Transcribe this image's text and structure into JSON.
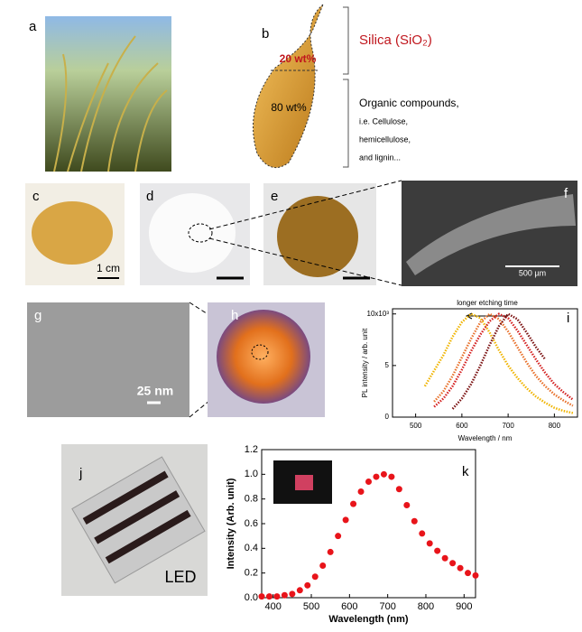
{
  "panel_labels": [
    "a",
    "b",
    "c",
    "d",
    "e",
    "f",
    "g",
    "h",
    "i",
    "j",
    "k"
  ],
  "husk": {
    "silica": "Silica (SiO₂)",
    "outer": "20 wt%",
    "inner": "80 wt%",
    "organic": [
      "Organic compounds,",
      "i.e. Cellulose,",
      "hemicellulose,",
      "and lignin..."
    ]
  },
  "scale_bars": {
    "c": "1 cm",
    "f": "500 µm",
    "g": "25 nm"
  },
  "led": "LED",
  "chart_data": [
    {
      "type": "line",
      "annotation": "longer etching time",
      "xlabel": "Wavelength / nm",
      "ylabel": "PL intensity / arb. unit",
      "x": [
        520,
        540,
        560,
        580,
        600,
        620,
        640,
        660,
        680,
        700,
        720,
        740,
        760,
        780,
        800,
        820,
        840
      ],
      "xlim": [
        450,
        850
      ],
      "xticks": [
        500,
        600,
        700,
        800
      ],
      "ylim": [
        0,
        10.5
      ],
      "yticks": [
        0,
        5,
        {
          "value": 10,
          "label": "10x10³"
        }
      ],
      "series": [
        {
          "color": "#f0b400",
          "values": [
            3,
            4.5,
            6,
            7.8,
            9.2,
            10,
            9.6,
            8.2,
            6.5,
            5,
            3.8,
            2.8,
            2,
            1.4,
            0.9,
            0.6,
            0.4
          ]
        },
        {
          "color": "#e8702a",
          "values": [
            null,
            1.5,
            2.5,
            4,
            5.8,
            7.6,
            9.2,
            10,
            9.5,
            8.3,
            6.8,
            5.3,
            4,
            3,
            2.2,
            1.6,
            1.1
          ]
        },
        {
          "color": "#d42020",
          "values": [
            null,
            1,
            1.8,
            3,
            4.6,
            6.4,
            8,
            9.3,
            10,
            9.6,
            8.4,
            7,
            5.6,
            4.3,
            3.2,
            2.4,
            1.7
          ]
        },
        {
          "color": "#7a1010",
          "values": [
            null,
            null,
            null,
            0.8,
            1.8,
            3.2,
            5,
            7,
            8.8,
            10,
            9.5,
            8.2,
            6.8,
            5.6,
            null,
            null,
            null
          ]
        }
      ]
    },
    {
      "type": "scatter",
      "xlabel": "Wavelength (nm)",
      "ylabel": "Intensity (Arb. unit)",
      "x": [
        370,
        390,
        410,
        430,
        450,
        470,
        490,
        510,
        530,
        550,
        570,
        590,
        610,
        630,
        650,
        670,
        690,
        710,
        730,
        750,
        770,
        790,
        810,
        830,
        850,
        870,
        890,
        910,
        930
      ],
      "xlim": [
        370,
        930
      ],
      "xticks": [
        400,
        500,
        600,
        700,
        800,
        900
      ],
      "ylim": [
        0,
        1.2
      ],
      "yticks": [
        {
          "value": 0,
          "label": "0.0"
        },
        0.2,
        0.4,
        0.6,
        0.8,
        {
          "value": 1,
          "label": "1.0"
        },
        1.2
      ],
      "series": [
        {
          "color": "#e8141a",
          "values": [
            0.01,
            0.01,
            0.01,
            0.02,
            0.03,
            0.06,
            0.1,
            0.17,
            0.26,
            0.37,
            0.5,
            0.63,
            0.76,
            0.86,
            0.94,
            0.98,
            1.0,
            0.98,
            0.88,
            0.75,
            0.62,
            0.52,
            0.44,
            0.38,
            0.32,
            0.28,
            0.24,
            0.2,
            0.18
          ]
        }
      ]
    }
  ]
}
